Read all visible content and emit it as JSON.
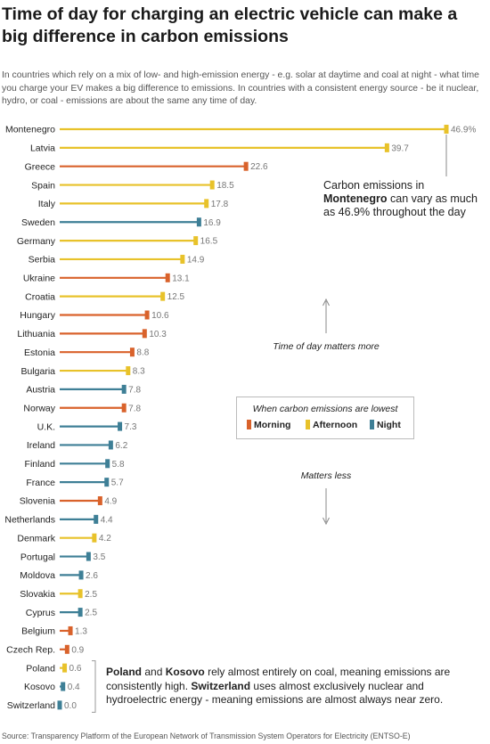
{
  "title": "Time of day for charging an electric vehicle can make a big difference in carbon emissions",
  "subtitle": "In countries which rely on a mix of low- and high-emission energy - e.g. solar at daytime and coal at night - what time you charge your EV makes a big difference to emissions. In countries with a consistent energy source - be it nuclear, hydro, or coal - emissions are about the same any time of day.",
  "annotation": {
    "prefix": "Carbon emissions in ",
    "country": "Montenegro",
    "suffix": " can vary as much as 46.9% throughout the day"
  },
  "legend": {
    "title": "When carbon emissions are lowest",
    "items": [
      {
        "label": "Morning",
        "color": "#d9622b"
      },
      {
        "label": "Afternoon",
        "color": "#e8c22a"
      },
      {
        "label": "Night",
        "color": "#3e7f96"
      }
    ]
  },
  "scale_labels": {
    "more": "Time of day matters more",
    "less": "Matters less"
  },
  "note": {
    "a": "Poland",
    "b": " and ",
    "c": "Kosovo",
    "d": " rely almost entirely on coal, meaning emissions are consistently high. ",
    "e": "Switzerland",
    "f": " uses almost exclusively nuclear and hydroelectric energy - meaning emissions are almost always near zero."
  },
  "source": "Source: Transparency Platform of the European Network of Transmission System Operators for Electricity (ENTSO-E)",
  "chart_data": {
    "type": "bar",
    "orientation": "horizontal",
    "value_unit": "%",
    "value_labels": [
      "46.9%",
      "39.7",
      "22.6",
      "18.5",
      "17.8",
      "16.9",
      "16.5",
      "14.9",
      "13.1",
      "12.5",
      "10.6",
      "10.3",
      "8.8",
      "8.3",
      "7.8",
      "7.8",
      "7.3",
      "6.2",
      "5.8",
      "5.7",
      "4.9",
      "4.4",
      "4.2",
      "3.5",
      "2.6",
      "2.5",
      "2.5",
      "1.3",
      "0.9",
      "0.6",
      "0.4",
      "0.0"
    ],
    "categories": [
      "Montenegro",
      "Latvia",
      "Greece",
      "Spain",
      "Italy",
      "Sweden",
      "Germany",
      "Serbia",
      "Ukraine",
      "Croatia",
      "Hungary",
      "Lithuania",
      "Estonia",
      "Bulgaria",
      "Austria",
      "Norway",
      "U.K.",
      "Ireland",
      "Finland",
      "France",
      "Slovenia",
      "Netherlands",
      "Denmark",
      "Portugal",
      "Moldova",
      "Slovakia",
      "Cyprus",
      "Belgium",
      "Czech Rep.",
      "Poland",
      "Kosovo",
      "Switzerland"
    ],
    "values": [
      46.9,
      39.7,
      22.6,
      18.5,
      17.8,
      16.9,
      16.5,
      14.9,
      13.1,
      12.5,
      10.6,
      10.3,
      8.8,
      8.3,
      7.8,
      7.8,
      7.3,
      6.2,
      5.8,
      5.7,
      4.9,
      4.4,
      4.2,
      3.5,
      2.6,
      2.5,
      2.5,
      1.3,
      0.9,
      0.6,
      0.4,
      0.0
    ],
    "lowest_time": [
      "Afternoon",
      "Afternoon",
      "Morning",
      "Afternoon",
      "Afternoon",
      "Night",
      "Afternoon",
      "Afternoon",
      "Morning",
      "Afternoon",
      "Morning",
      "Morning",
      "Morning",
      "Afternoon",
      "Night",
      "Morning",
      "Night",
      "Night",
      "Night",
      "Night",
      "Morning",
      "Night",
      "Afternoon",
      "Night",
      "Night",
      "Afternoon",
      "Night",
      "Morning",
      "Morning",
      "Afternoon",
      "Night",
      "Night"
    ],
    "colors": {
      "Morning": "#d9622b",
      "Afternoon": "#e8c22a",
      "Night": "#3e7f96"
    },
    "xlim": [
      0,
      46.9
    ]
  }
}
